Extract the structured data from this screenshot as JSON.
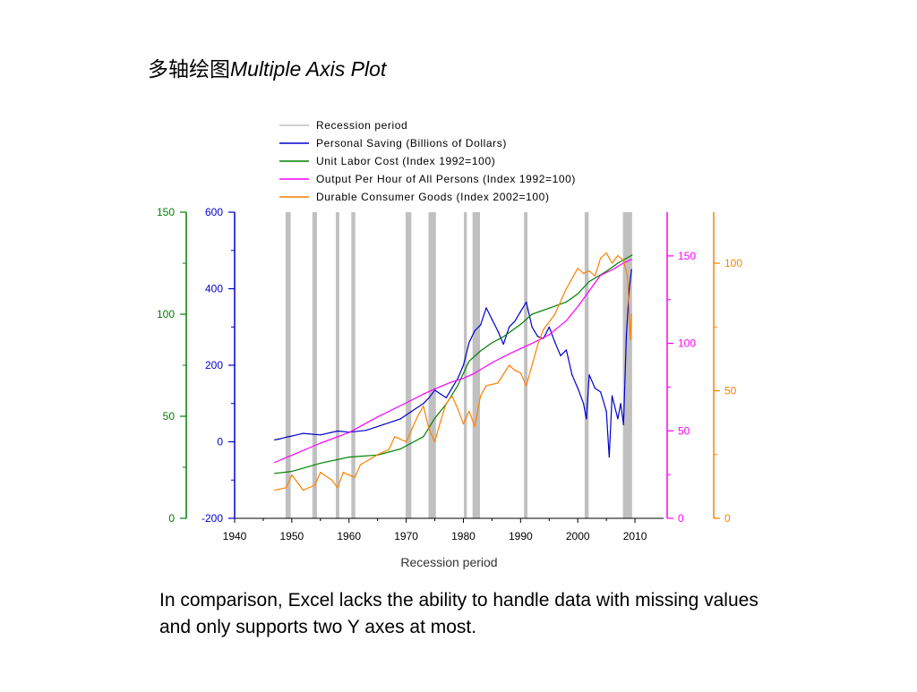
{
  "slide": {
    "title_cn": "多轴绘图",
    "title_en": "Multiple Axis Plot",
    "caption": "In comparison, Excel lacks the ability to handle data with missing values and only supports two Y axes at most."
  },
  "chart_data": {
    "type": "line",
    "title": "",
    "xlabel": "Recession period",
    "x_range": [
      1940,
      2015
    ],
    "x_ticks": [
      1940,
      1950,
      1960,
      1970,
      1980,
      1990,
      2000,
      2010
    ],
    "recessions": [
      [
        1948.9,
        1949.8
      ],
      [
        1953.6,
        1954.4
      ],
      [
        1957.7,
        1958.3
      ],
      [
        1960.4,
        1961.1
      ],
      [
        1969.9,
        1970.9
      ],
      [
        1973.9,
        1975.2
      ],
      [
        1980.1,
        1980.6
      ],
      [
        1981.6,
        1982.9
      ],
      [
        1990.6,
        1991.2
      ],
      [
        2001.2,
        2001.9
      ],
      [
        2007.9,
        2009.5
      ]
    ],
    "axes": [
      {
        "id": "labor",
        "color": "#008000",
        "range": [
          0,
          150
        ],
        "ticks": [
          "0",
          "50",
          "100",
          "150"
        ],
        "tick_values": [
          0,
          50,
          100,
          150
        ],
        "side": "left-outer"
      },
      {
        "id": "saving",
        "color": "#0000cc",
        "range": [
          -200,
          600
        ],
        "ticks": [
          "-200",
          "0",
          "200",
          "400",
          "600"
        ],
        "tick_values": [
          -200,
          0,
          200,
          400,
          600
        ],
        "side": "left-inner"
      },
      {
        "id": "output",
        "color": "#ff00ff",
        "range": [
          0,
          175
        ],
        "ticks": [
          "0",
          "50",
          "100",
          "150"
        ],
        "tick_values": [
          0,
          50,
          100,
          150
        ],
        "side": "right-inner"
      },
      {
        "id": "durable",
        "color": "#ff8000",
        "range": [
          0,
          120
        ],
        "ticks": [
          "0",
          "50",
          "100"
        ],
        "tick_values": [
          0,
          50,
          100
        ],
        "side": "right-outer"
      }
    ],
    "legend": [
      {
        "label": "Recession period",
        "color": "#c0c0c0"
      },
      {
        "label": "Personal Saving (Billions of Dollars)",
        "color": "#0000cc"
      },
      {
        "label": "Unit Labor Cost (Index 1992=100)",
        "color": "#008000"
      },
      {
        "label": "Output Per Hour of All Persons (Index 1992=100)",
        "color": "#ff00ff"
      },
      {
        "label": "Durable Consumer Goods (Index 2002=100)",
        "color": "#ff8000"
      }
    ],
    "series": [
      {
        "name": "Personal Saving (Billions of Dollars)",
        "axis": "saving",
        "color": "#0000cc",
        "x": [
          1947,
          1948,
          1949,
          1950,
          1952,
          1955,
          1958,
          1960,
          1963,
          1966,
          1969,
          1971,
          1973,
          1974,
          1975,
          1976,
          1977,
          1978,
          1979,
          1980,
          1981,
          1982,
          1983,
          1984,
          1985,
          1986,
          1987,
          1988,
          1989,
          1990,
          1991,
          1992,
          1993,
          1994,
          1995,
          1996,
          1997,
          1998,
          1999,
          2000,
          2001,
          2001.5,
          2002,
          2003,
          2004,
          2005,
          2005.5,
          2006,
          2007,
          2007.5,
          2008,
          2008.5,
          2009,
          2009.4
        ],
        "values": [
          5,
          8,
          12,
          15,
          22,
          18,
          28,
          25,
          30,
          45,
          60,
          80,
          100,
          115,
          135,
          125,
          115,
          140,
          165,
          200,
          260,
          290,
          305,
          350,
          320,
          290,
          255,
          300,
          315,
          340,
          365,
          300,
          275,
          270,
          300,
          260,
          225,
          240,
          175,
          140,
          100,
          60,
          175,
          140,
          130,
          80,
          -40,
          120,
          60,
          100,
          45,
          280,
          400,
          450
        ]
      },
      {
        "name": "Unit Labor Cost (Index 1992=100)",
        "axis": "labor",
        "color": "#008000",
        "x": [
          1947,
          1950,
          1955,
          1960,
          1965,
          1969,
          1971,
          1973,
          1975,
          1977,
          1979,
          1981,
          1983,
          1985,
          1987,
          1990,
          1992,
          1995,
          1998,
          2000,
          2002,
          2005,
          2007,
          2009.5
        ],
        "values": [
          22,
          23,
          27,
          30,
          31,
          34,
          37,
          40,
          49,
          56,
          65,
          77,
          82,
          86,
          89,
          95,
          100,
          103,
          106,
          110,
          116,
          121,
          125,
          129
        ]
      },
      {
        "name": "Output Per Hour of All Persons (Index 1992=100)",
        "axis": "output",
        "color": "#ff00ff",
        "x": [
          1947,
          1950,
          1955,
          1960,
          1965,
          1970,
          1973,
          1975,
          1978,
          1980,
          1982,
          1985,
          1988,
          1990,
          1992,
          1995,
          1998,
          2000,
          2002,
          2004,
          2006,
          2008,
          2009.4
        ],
        "values": [
          32,
          36,
          43,
          49,
          58,
          66,
          71,
          74,
          78,
          80,
          83,
          89,
          94,
          97,
          100,
          105,
          113,
          121,
          130,
          139,
          142,
          146,
          148
        ]
      },
      {
        "name": "Durable Consumer Goods (Index 2002=100)",
        "axis": "durable",
        "color": "#ff8000",
        "x": [
          1947,
          1949,
          1950,
          1952,
          1954,
          1955,
          1957,
          1958,
          1959,
          1961,
          1962,
          1965,
          1967,
          1968,
          1970,
          1971,
          1972,
          1973,
          1974,
          1975,
          1976,
          1977,
          1978,
          1979,
          1980,
          1981,
          1982,
          1983,
          1984,
          1986,
          1988,
          1989,
          1990,
          1991,
          1993,
          1994,
          1996,
          1998,
          2000,
          2001,
          2002,
          2003,
          2004,
          2005,
          2006,
          2007,
          2008,
          2008.7,
          2009.2,
          2009.4
        ],
        "values": [
          11,
          12,
          17,
          11,
          13,
          18,
          15,
          12,
          18,
          16,
          21,
          25,
          27,
          32,
          30,
          35,
          40,
          44,
          35,
          30,
          38,
          45,
          48,
          43,
          37,
          42,
          36,
          48,
          52,
          53,
          60,
          58,
          57,
          52,
          68,
          74,
          80,
          90,
          98,
          96,
          97,
          95,
          102,
          104,
          100,
          103,
          101,
          95,
          70,
          80
        ]
      }
    ]
  }
}
